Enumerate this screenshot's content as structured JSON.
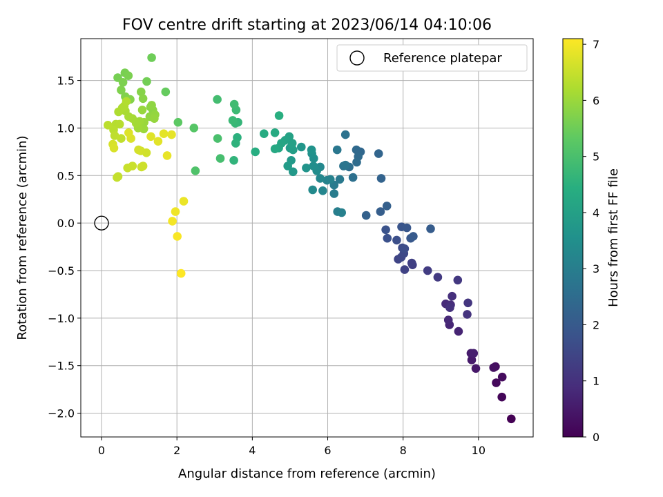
{
  "chart_data": {
    "type": "scatter",
    "title": "FOV centre drift starting at 2023/06/14 04:10:06",
    "xlabel": "Angular distance from reference (arcmin)",
    "ylabel": "Rotation from reference (arcmin)",
    "xlim": [
      -0.55,
      11.45
    ],
    "ylim": [
      -2.25,
      1.94
    ],
    "xticks": [
      0,
      2,
      4,
      6,
      8,
      10
    ],
    "yticks": [
      -2.0,
      -1.5,
      -1.0,
      -0.5,
      0.0,
      0.5,
      1.0,
      1.5
    ],
    "xtick_labels": [
      "0",
      "2",
      "4",
      "6",
      "8",
      "10"
    ],
    "ytick_labels": [
      "−2.0",
      "−1.5",
      "−1.0",
      "−0.5",
      "0.0",
      "0.5",
      "1.0",
      "1.5"
    ],
    "grid": true,
    "legend": {
      "position": "upper-right",
      "entries": [
        "Reference platepar"
      ]
    },
    "reference_marker": {
      "x": 0,
      "y": 0,
      "style": "open-circle"
    },
    "colorbar": {
      "label": "Hours from first FF file",
      "colormap": "viridis",
      "range": [
        0,
        7.1
      ],
      "ticks": [
        0,
        1,
        2,
        3,
        4,
        5,
        6,
        7
      ],
      "tick_labels": [
        "0",
        "1",
        "2",
        "3",
        "4",
        "5",
        "6",
        "7"
      ]
    },
    "points": [
      {
        "x": 10.87,
        "y": -2.06,
        "c": 0.0
      },
      {
        "x": 10.62,
        "y": -1.83,
        "c": 0.1
      },
      {
        "x": 10.47,
        "y": -1.68,
        "c": 0.15
      },
      {
        "x": 10.63,
        "y": -1.62,
        "c": 0.2
      },
      {
        "x": 10.45,
        "y": -1.51,
        "c": 0.25
      },
      {
        "x": 10.4,
        "y": -1.52,
        "c": 0.3
      },
      {
        "x": 9.93,
        "y": -1.53,
        "c": 0.45
      },
      {
        "x": 9.82,
        "y": -1.44,
        "c": 0.5
      },
      {
        "x": 9.8,
        "y": -1.37,
        "c": 0.55
      },
      {
        "x": 9.87,
        "y": -1.37,
        "c": 0.6
      },
      {
        "x": 9.47,
        "y": -1.14,
        "c": 0.7
      },
      {
        "x": 9.23,
        "y": -1.07,
        "c": 0.75
      },
      {
        "x": 9.2,
        "y": -1.02,
        "c": 0.8
      },
      {
        "x": 9.13,
        "y": -0.85,
        "c": 0.85
      },
      {
        "x": 9.26,
        "y": -0.86,
        "c": 0.9
      },
      {
        "x": 9.3,
        "y": -0.77,
        "c": 0.95
      },
      {
        "x": 9.24,
        "y": -0.89,
        "c": 1.0
      },
      {
        "x": 9.7,
        "y": -0.96,
        "c": 1.05
      },
      {
        "x": 9.72,
        "y": -0.84,
        "c": 1.1
      },
      {
        "x": 9.45,
        "y": -0.6,
        "c": 1.15
      },
      {
        "x": 8.92,
        "y": -0.57,
        "c": 1.2
      },
      {
        "x": 8.65,
        "y": -0.5,
        "c": 1.25
      },
      {
        "x": 8.25,
        "y": -0.44,
        "c": 1.3
      },
      {
        "x": 8.23,
        "y": -0.42,
        "c": 1.35
      },
      {
        "x": 8.04,
        "y": -0.49,
        "c": 1.4
      },
      {
        "x": 7.87,
        "y": -0.38,
        "c": 1.45
      },
      {
        "x": 7.95,
        "y": -0.36,
        "c": 1.5
      },
      {
        "x": 8.02,
        "y": -0.32,
        "c": 1.55
      },
      {
        "x": 7.98,
        "y": -0.26,
        "c": 1.6
      },
      {
        "x": 8.04,
        "y": -0.27,
        "c": 1.65
      },
      {
        "x": 7.83,
        "y": -0.18,
        "c": 1.7
      },
      {
        "x": 7.58,
        "y": -0.16,
        "c": 1.75
      },
      {
        "x": 7.54,
        "y": -0.07,
        "c": 1.8
      },
      {
        "x": 7.96,
        "y": -0.04,
        "c": 1.85
      },
      {
        "x": 8.1,
        "y": -0.05,
        "c": 1.9
      },
      {
        "x": 8.2,
        "y": -0.16,
        "c": 1.95
      },
      {
        "x": 8.27,
        "y": -0.14,
        "c": 2.0
      },
      {
        "x": 8.73,
        "y": -0.06,
        "c": 2.05
      },
      {
        "x": 7.4,
        "y": 0.12,
        "c": 2.1
      },
      {
        "x": 7.57,
        "y": 0.18,
        "c": 2.15
      },
      {
        "x": 7.02,
        "y": 0.08,
        "c": 2.2
      },
      {
        "x": 7.42,
        "y": 0.47,
        "c": 2.25
      },
      {
        "x": 7.35,
        "y": 0.73,
        "c": 2.3
      },
      {
        "x": 6.87,
        "y": 0.75,
        "c": 2.35
      },
      {
        "x": 6.76,
        "y": 0.77,
        "c": 2.4
      },
      {
        "x": 6.81,
        "y": 0.7,
        "c": 2.45
      },
      {
        "x": 6.77,
        "y": 0.64,
        "c": 2.5
      },
      {
        "x": 6.57,
        "y": 0.59,
        "c": 2.55
      },
      {
        "x": 6.67,
        "y": 0.48,
        "c": 2.6
      },
      {
        "x": 6.47,
        "y": 0.93,
        "c": 2.65
      },
      {
        "x": 6.42,
        "y": 0.6,
        "c": 2.7
      },
      {
        "x": 6.47,
        "y": 0.61,
        "c": 2.75
      },
      {
        "x": 6.25,
        "y": 0.77,
        "c": 2.8
      },
      {
        "x": 6.32,
        "y": 0.46,
        "c": 2.85
      },
      {
        "x": 6.17,
        "y": 0.4,
        "c": 2.9
      },
      {
        "x": 6.17,
        "y": 0.31,
        "c": 2.95
      },
      {
        "x": 6.26,
        "y": 0.12,
        "c": 3.0
      },
      {
        "x": 6.37,
        "y": 0.11,
        "c": 3.05
      },
      {
        "x": 6.07,
        "y": 0.46,
        "c": 3.1
      },
      {
        "x": 5.98,
        "y": 0.45,
        "c": 3.15
      },
      {
        "x": 5.87,
        "y": 0.34,
        "c": 3.2
      },
      {
        "x": 5.8,
        "y": 0.47,
        "c": 3.25
      },
      {
        "x": 5.8,
        "y": 0.59,
        "c": 3.3
      },
      {
        "x": 5.6,
        "y": 0.35,
        "c": 3.35
      },
      {
        "x": 5.71,
        "y": 0.55,
        "c": 3.4
      },
      {
        "x": 5.62,
        "y": 0.6,
        "c": 3.45
      },
      {
        "x": 5.63,
        "y": 0.68,
        "c": 3.5
      },
      {
        "x": 5.58,
        "y": 0.73,
        "c": 3.55
      },
      {
        "x": 5.57,
        "y": 0.77,
        "c": 3.6
      },
      {
        "x": 5.43,
        "y": 0.58,
        "c": 3.65
      },
      {
        "x": 5.3,
        "y": 0.8,
        "c": 3.7
      },
      {
        "x": 5.08,
        "y": 0.54,
        "c": 3.75
      },
      {
        "x": 5.03,
        "y": 0.66,
        "c": 3.8
      },
      {
        "x": 4.94,
        "y": 0.6,
        "c": 3.85
      },
      {
        "x": 5.0,
        "y": 0.79,
        "c": 3.9
      },
      {
        "x": 5.08,
        "y": 0.77,
        "c": 3.95
      },
      {
        "x": 5.06,
        "y": 0.84,
        "c": 4.0
      },
      {
        "x": 4.98,
        "y": 0.91,
        "c": 4.05
      },
      {
        "x": 4.87,
        "y": 0.87,
        "c": 4.1
      },
      {
        "x": 4.77,
        "y": 0.84,
        "c": 4.15
      },
      {
        "x": 4.7,
        "y": 0.79,
        "c": 4.2
      },
      {
        "x": 4.6,
        "y": 0.78,
        "c": 4.25
      },
      {
        "x": 4.6,
        "y": 0.95,
        "c": 4.3
      },
      {
        "x": 4.31,
        "y": 0.94,
        "c": 4.35
      },
      {
        "x": 4.08,
        "y": 0.75,
        "c": 4.4
      },
      {
        "x": 4.71,
        "y": 1.13,
        "c": 4.45
      },
      {
        "x": 3.6,
        "y": 0.9,
        "c": 4.5
      },
      {
        "x": 3.56,
        "y": 0.84,
        "c": 4.55
      },
      {
        "x": 3.51,
        "y": 0.66,
        "c": 4.6
      },
      {
        "x": 3.62,
        "y": 1.06,
        "c": 4.65
      },
      {
        "x": 3.55,
        "y": 1.05,
        "c": 4.7
      },
      {
        "x": 3.48,
        "y": 1.08,
        "c": 4.75
      },
      {
        "x": 3.57,
        "y": 1.19,
        "c": 4.8
      },
      {
        "x": 3.52,
        "y": 1.25,
        "c": 4.85
      },
      {
        "x": 3.07,
        "y": 1.3,
        "c": 4.9
      },
      {
        "x": 3.15,
        "y": 0.68,
        "c": 4.95
      },
      {
        "x": 3.08,
        "y": 0.89,
        "c": 5.0
      },
      {
        "x": 2.49,
        "y": 0.55,
        "c": 5.1
      },
      {
        "x": 2.45,
        "y": 1.0,
        "c": 5.2
      },
      {
        "x": 2.03,
        "y": 1.06,
        "c": 5.3
      },
      {
        "x": 1.7,
        "y": 1.38,
        "c": 5.4
      },
      {
        "x": 1.33,
        "y": 1.74,
        "c": 5.5
      },
      {
        "x": 1.2,
        "y": 1.49,
        "c": 5.55
      },
      {
        "x": 0.43,
        "y": 1.53,
        "c": 5.6
      },
      {
        "x": 0.62,
        "y": 1.58,
        "c": 5.62
      },
      {
        "x": 0.71,
        "y": 1.55,
        "c": 5.65
      },
      {
        "x": 0.57,
        "y": 1.48,
        "c": 5.67
      },
      {
        "x": 0.52,
        "y": 1.4,
        "c": 5.7
      },
      {
        "x": 0.63,
        "y": 1.33,
        "c": 5.72
      },
      {
        "x": 0.76,
        "y": 1.3,
        "c": 5.75
      },
      {
        "x": 1.05,
        "y": 1.38,
        "c": 5.77
      },
      {
        "x": 1.1,
        "y": 1.31,
        "c": 5.8
      },
      {
        "x": 1.3,
        "y": 1.22,
        "c": 5.82
      },
      {
        "x": 1.36,
        "y": 1.19,
        "c": 5.85
      },
      {
        "x": 1.33,
        "y": 1.24,
        "c": 5.87
      },
      {
        "x": 1.28,
        "y": 1.12,
        "c": 5.9
      },
      {
        "x": 1.42,
        "y": 1.14,
        "c": 5.92
      },
      {
        "x": 1.4,
        "y": 1.1,
        "c": 5.95
      },
      {
        "x": 1.08,
        "y": 1.19,
        "c": 5.97
      },
      {
        "x": 1.13,
        "y": 1.06,
        "c": 6.0
      },
      {
        "x": 1.12,
        "y": 0.99,
        "c": 6.02
      },
      {
        "x": 1.01,
        "y": 1.07,
        "c": 6.05
      },
      {
        "x": 0.97,
        "y": 1.0,
        "c": 6.07
      },
      {
        "x": 0.92,
        "y": 1.05,
        "c": 6.1
      },
      {
        "x": 0.82,
        "y": 1.1,
        "c": 6.12
      },
      {
        "x": 0.72,
        "y": 1.12,
        "c": 6.15
      },
      {
        "x": 0.63,
        "y": 1.18,
        "c": 6.17
      },
      {
        "x": 0.55,
        "y": 1.21,
        "c": 6.2
      },
      {
        "x": 0.45,
        "y": 1.17,
        "c": 6.22
      },
      {
        "x": 0.6,
        "y": 1.23,
        "c": 6.25
      },
      {
        "x": 0.66,
        "y": 1.28,
        "c": 6.27
      },
      {
        "x": 0.38,
        "y": 1.04,
        "c": 6.3
      },
      {
        "x": 0.48,
        "y": 1.04,
        "c": 6.32
      },
      {
        "x": 0.32,
        "y": 0.98,
        "c": 6.35
      },
      {
        "x": 0.17,
        "y": 1.03,
        "c": 6.37
      },
      {
        "x": 0.35,
        "y": 0.92,
        "c": 6.4
      },
      {
        "x": 0.52,
        "y": 0.89,
        "c": 6.42
      },
      {
        "x": 0.44,
        "y": 0.49,
        "c": 6.45
      },
      {
        "x": 0.41,
        "y": 0.48,
        "c": 6.47
      },
      {
        "x": 0.69,
        "y": 0.58,
        "c": 6.5
      },
      {
        "x": 0.82,
        "y": 0.6,
        "c": 6.52
      },
      {
        "x": 1.06,
        "y": 0.59,
        "c": 6.55
      },
      {
        "x": 1.1,
        "y": 0.6,
        "c": 6.57
      },
      {
        "x": 1.19,
        "y": 0.74,
        "c": 6.6
      },
      {
        "x": 1.04,
        "y": 0.76,
        "c": 6.62
      },
      {
        "x": 0.98,
        "y": 0.77,
        "c": 6.65
      },
      {
        "x": 0.3,
        "y": 0.83,
        "c": 6.67
      },
      {
        "x": 0.33,
        "y": 0.79,
        "c": 6.7
      },
      {
        "x": 0.78,
        "y": 0.89,
        "c": 6.72
      },
      {
        "x": 0.72,
        "y": 0.95,
        "c": 6.75
      },
      {
        "x": 1.31,
        "y": 0.91,
        "c": 6.77
      },
      {
        "x": 1.5,
        "y": 0.86,
        "c": 6.8
      },
      {
        "x": 1.65,
        "y": 0.94,
        "c": 6.82
      },
      {
        "x": 1.86,
        "y": 0.93,
        "c": 6.85
      },
      {
        "x": 1.74,
        "y": 0.71,
        "c": 6.87
      },
      {
        "x": 2.18,
        "y": 0.23,
        "c": 6.9
      },
      {
        "x": 1.96,
        "y": 0.12,
        "c": 6.95
      },
      {
        "x": 1.88,
        "y": 0.02,
        "c": 7.0
      },
      {
        "x": 2.01,
        "y": -0.14,
        "c": 7.05
      },
      {
        "x": 2.11,
        "y": -0.53,
        "c": 7.1
      }
    ]
  }
}
